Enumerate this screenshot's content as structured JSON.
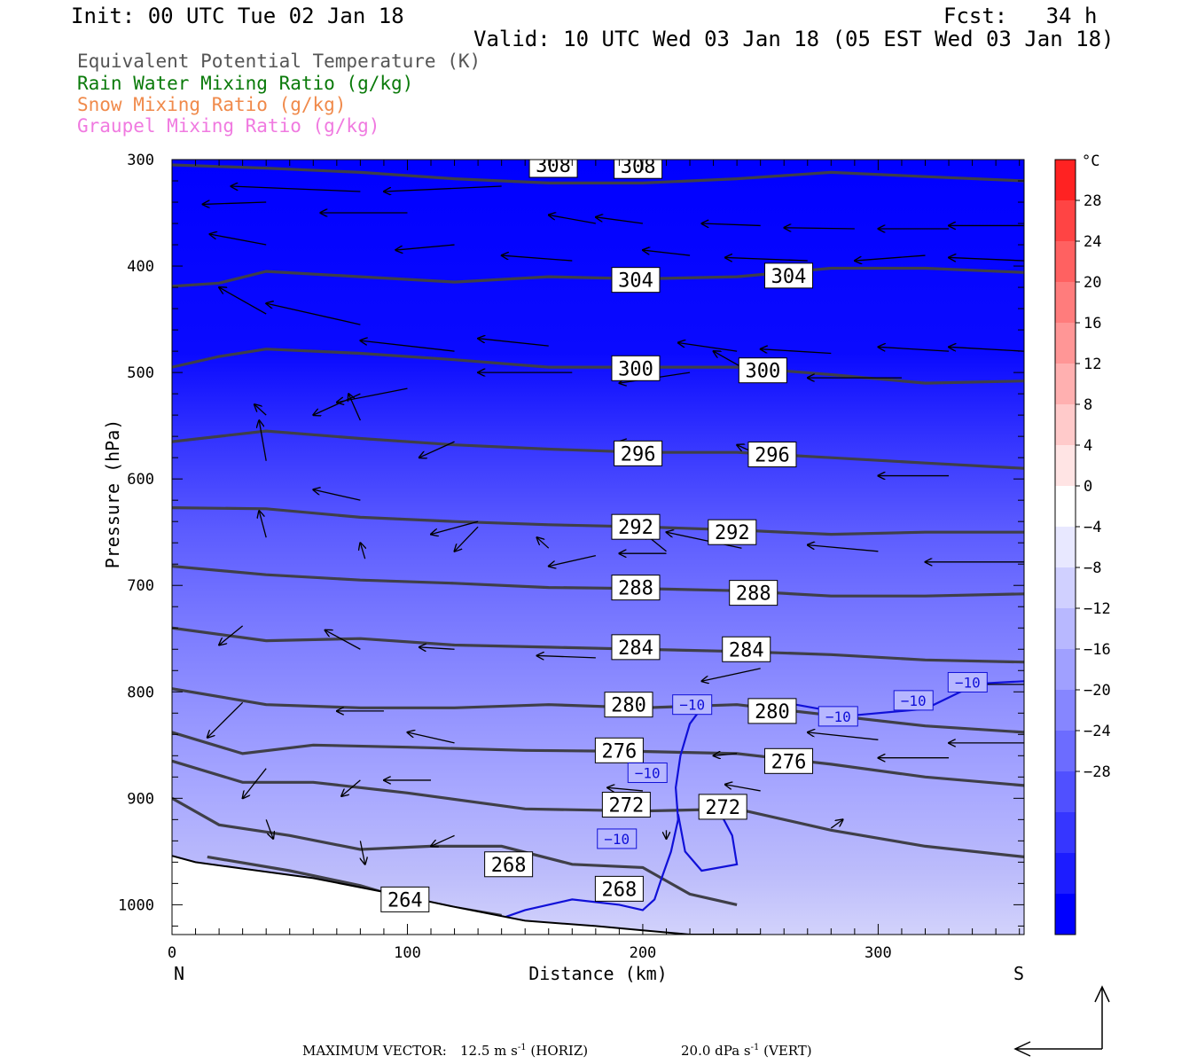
{
  "header": {
    "init": "Init: 00 UTC Tue 02 Jan 18",
    "fcst": "Fcst:   34 h",
    "valid": "Valid: 10 UTC Wed 03 Jan 18 (05 EST Wed 03 Jan 18)"
  },
  "legend": [
    {
      "label": "Equivalent Potential Temperature (K)",
      "color": "#555555"
    },
    {
      "label": "Rain Water Mixing Ratio (g/kg)",
      "color": "#0a7a0a"
    },
    {
      "label": "Snow Mixing Ratio (g/kg)",
      "color": "#f08a4b"
    },
    {
      "label": "Graupel Mixing Ratio (g/kg)",
      "color": "#f07ae0"
    }
  ],
  "footer": {
    "max_vector_label": "MAXIMUM VECTOR:",
    "horiz_value": "12.5 m s",
    "horiz_unit": "(HORIZ)",
    "vert_value": "20.0 dPa s",
    "vert_unit": "(VERT)",
    "exponent": "-1"
  },
  "chart_data": {
    "type": "cross-section",
    "xlabel": "Distance (km)",
    "ylabel": "Pressure (hPa)",
    "xlim": [
      0,
      362
    ],
    "ylim": [
      300,
      1028
    ],
    "x_ticks": [
      0,
      100,
      200,
      300
    ],
    "y_ticks": [
      300,
      400,
      500,
      600,
      700,
      800,
      900,
      1000
    ],
    "x_end_labels": {
      "left": "N",
      "right": "S"
    },
    "colorbar": {
      "unit": "°C",
      "labels": [
        "28",
        "24",
        "20",
        "16",
        "12",
        "8",
        "4",
        "0",
        "−4",
        "−8",
        "−12",
        "−16",
        "−20",
        "−24",
        "−28"
      ],
      "bins": [
        "#ff2222",
        "#ff4444",
        "#ff6161",
        "#ff7c7c",
        "#ff9696",
        "#ffb0b0",
        "#ffcaca",
        "#ffe4e4",
        "#ffffff",
        "#e8e8ff",
        "#d0d0ff",
        "#b8b8ff",
        "#a0a0ff",
        "#8686ff",
        "#6c6cff",
        "#5050ff",
        "#3636ff",
        "#1c1cff",
        "#0000ff"
      ]
    },
    "theta_e_contours": [
      {
        "level": 308,
        "points": [
          [
            0,
            305
          ],
          [
            40,
            308
          ],
          [
            80,
            312
          ],
          [
            120,
            318
          ],
          [
            160,
            322
          ],
          [
            200,
            322
          ],
          [
            240,
            318
          ],
          [
            280,
            312
          ],
          [
            320,
            316
          ],
          [
            362,
            320
          ]
        ],
        "labels": [
          [
            162,
            305
          ],
          [
            198,
            306
          ]
        ]
      },
      {
        "level": 304,
        "points": [
          [
            0,
            419
          ],
          [
            20,
            416
          ],
          [
            40,
            405
          ],
          [
            80,
            410
          ],
          [
            120,
            415
          ],
          [
            160,
            410
          ],
          [
            200,
            412
          ],
          [
            240,
            410
          ],
          [
            280,
            402
          ],
          [
            320,
            402
          ],
          [
            362,
            406
          ]
        ],
        "labels": [
          [
            197,
            413
          ],
          [
            262,
            409
          ]
        ]
      },
      {
        "level": 300,
        "points": [
          [
            0,
            495
          ],
          [
            20,
            485
          ],
          [
            40,
            478
          ],
          [
            80,
            482
          ],
          [
            120,
            488
          ],
          [
            160,
            495
          ],
          [
            200,
            495
          ],
          [
            240,
            495
          ],
          [
            280,
            502
          ],
          [
            320,
            510
          ],
          [
            362,
            508
          ]
        ],
        "labels": [
          [
            197,
            496
          ],
          [
            251,
            498
          ]
        ]
      },
      {
        "level": 296,
        "points": [
          [
            0,
            565
          ],
          [
            20,
            560
          ],
          [
            40,
            555
          ],
          [
            80,
            562
          ],
          [
            120,
            568
          ],
          [
            160,
            572
          ],
          [
            200,
            575
          ],
          [
            240,
            575
          ],
          [
            280,
            580
          ],
          [
            320,
            585
          ],
          [
            362,
            590
          ]
        ],
        "labels": [
          [
            198,
            576
          ],
          [
            255,
            577
          ]
        ]
      },
      {
        "level": 292,
        "points": [
          [
            0,
            627
          ],
          [
            40,
            628
          ],
          [
            80,
            636
          ],
          [
            120,
            640
          ],
          [
            160,
            643
          ],
          [
            200,
            645
          ],
          [
            240,
            648
          ],
          [
            280,
            652
          ],
          [
            320,
            650
          ],
          [
            362,
            650
          ]
        ],
        "labels": [
          [
            197,
            645
          ],
          [
            238,
            650
          ]
        ]
      },
      {
        "level": 288,
        "points": [
          [
            0,
            682
          ],
          [
            40,
            690
          ],
          [
            80,
            695
          ],
          [
            120,
            698
          ],
          [
            160,
            702
          ],
          [
            200,
            703
          ],
          [
            240,
            705
          ],
          [
            280,
            710
          ],
          [
            320,
            710
          ],
          [
            362,
            708
          ]
        ],
        "labels": [
          [
            197,
            702
          ],
          [
            247,
            707
          ]
        ]
      },
      {
        "level": 284,
        "points": [
          [
            0,
            740
          ],
          [
            40,
            752
          ],
          [
            80,
            750
          ],
          [
            120,
            756
          ],
          [
            160,
            758
          ],
          [
            200,
            760
          ],
          [
            240,
            762
          ],
          [
            280,
            765
          ],
          [
            320,
            770
          ],
          [
            362,
            772
          ]
        ],
        "labels": [
          [
            197,
            758
          ],
          [
            244,
            760
          ]
        ]
      },
      {
        "level": 280,
        "points": [
          [
            0,
            797
          ],
          [
            40,
            812
          ],
          [
            80,
            815
          ],
          [
            120,
            815
          ],
          [
            160,
            812
          ],
          [
            200,
            815
          ],
          [
            240,
            812
          ],
          [
            280,
            822
          ],
          [
            320,
            832
          ],
          [
            362,
            838
          ]
        ],
        "labels": [
          [
            194,
            812
          ],
          [
            255,
            818
          ]
        ]
      },
      {
        "level": 276,
        "points": [
          [
            0,
            838
          ],
          [
            30,
            858
          ],
          [
            60,
            850
          ],
          [
            100,
            852
          ],
          [
            150,
            855
          ],
          [
            200,
            856
          ],
          [
            240,
            858
          ],
          [
            280,
            868
          ],
          [
            320,
            880
          ],
          [
            362,
            888
          ]
        ],
        "labels": [
          [
            190,
            855
          ],
          [
            262,
            865
          ]
        ]
      },
      {
        "level": 272,
        "points": [
          [
            0,
            865
          ],
          [
            30,
            885
          ],
          [
            60,
            885
          ],
          [
            100,
            895
          ],
          [
            150,
            910
          ],
          [
            200,
            912
          ],
          [
            240,
            910
          ],
          [
            280,
            930
          ],
          [
            320,
            945
          ],
          [
            362,
            955
          ]
        ],
        "labels": [
          [
            193,
            906
          ],
          [
            234,
            908
          ]
        ]
      },
      {
        "level": 268,
        "points": [
          [
            0,
            900
          ],
          [
            20,
            925
          ],
          [
            50,
            935
          ],
          [
            80,
            948
          ],
          [
            110,
            945
          ],
          [
            140,
            945
          ],
          [
            170,
            962
          ],
          [
            200,
            965
          ],
          [
            220,
            990
          ],
          [
            240,
            1000
          ]
        ],
        "labels": [
          [
            143,
            962
          ],
          [
            190,
            985
          ]
        ]
      },
      {
        "level": 264,
        "points": [
          [
            15,
            955
          ],
          [
            50,
            968
          ],
          [
            80,
            982
          ],
          [
            100,
            995
          ],
          [
            140,
            1010
          ]
        ],
        "labels": [
          [
            99,
            995
          ]
        ]
      }
    ],
    "minus10_labels": [
      [
        221,
        812
      ],
      [
        202,
        876
      ],
      [
        315,
        808
      ],
      [
        338,
        791
      ],
      [
        283,
        823
      ],
      [
        189,
        938
      ]
    ]
  }
}
